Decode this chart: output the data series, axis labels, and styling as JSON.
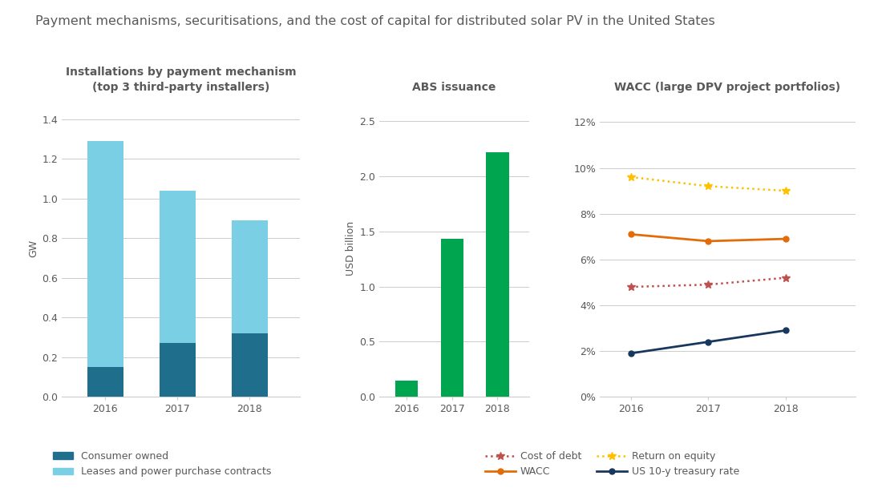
{
  "title": "Payment mechanisms, securitisations, and the cost of capital for distributed solar PV in the United States",
  "title_color": "#595959",
  "title_fontsize": 11.5,
  "bar1_title": "Installations by payment mechanism\n(top 3 third-party installers)",
  "bar1_ylabel": "GW",
  "bar1_years": [
    2016,
    2017,
    2018
  ],
  "bar1_consumer": [
    0.15,
    0.27,
    0.32
  ],
  "bar1_leases": [
    1.14,
    0.77,
    0.57
  ],
  "bar1_consumer_color": "#1f6e8c",
  "bar1_leases_color": "#7acfe4",
  "bar1_ylim": [
    0,
    1.5
  ],
  "bar1_yticks": [
    0.0,
    0.2,
    0.4,
    0.6,
    0.8,
    1.0,
    1.2,
    1.4
  ],
  "bar2_title": "ABS issuance",
  "bar2_ylabel": "USD billion",
  "bar2_years": [
    2016,
    2017,
    2018
  ],
  "bar2_values": [
    0.15,
    1.43,
    2.22
  ],
  "bar2_color": "#00a550",
  "bar2_ylim": [
    0,
    2.7
  ],
  "bar2_yticks": [
    0.0,
    0.5,
    1.0,
    1.5,
    2.0,
    2.5
  ],
  "line_title": "WACC (large DPV project portfolios)",
  "line_years": [
    2016,
    2017,
    2018
  ],
  "cost_of_debt": [
    0.048,
    0.049,
    0.052
  ],
  "wacc": [
    0.071,
    0.068,
    0.069
  ],
  "return_on_equity": [
    0.096,
    0.092,
    0.09
  ],
  "treasury_rate": [
    0.019,
    0.024,
    0.029
  ],
  "line_ylim": [
    0,
    0.13
  ],
  "line_yticks": [
    0.0,
    0.02,
    0.04,
    0.06,
    0.08,
    0.1,
    0.12
  ],
  "cost_of_debt_color": "#c0504d",
  "wacc_color": "#e36c09",
  "return_on_equity_color": "#ffc000",
  "treasury_rate_color": "#17375e",
  "legend1_labels": [
    "Consumer owned",
    "Leases and power purchase contracts"
  ],
  "legend2_labels": [
    "Cost of debt",
    "WACC",
    "Return on equity",
    "US 10-y treasury rate"
  ],
  "grid_color": "#cccccc",
  "text_color": "#595959",
  "axis_title_color": "#595959",
  "label_fontsize": 9,
  "tick_fontsize": 9,
  "subtitle_fontsize": 10
}
